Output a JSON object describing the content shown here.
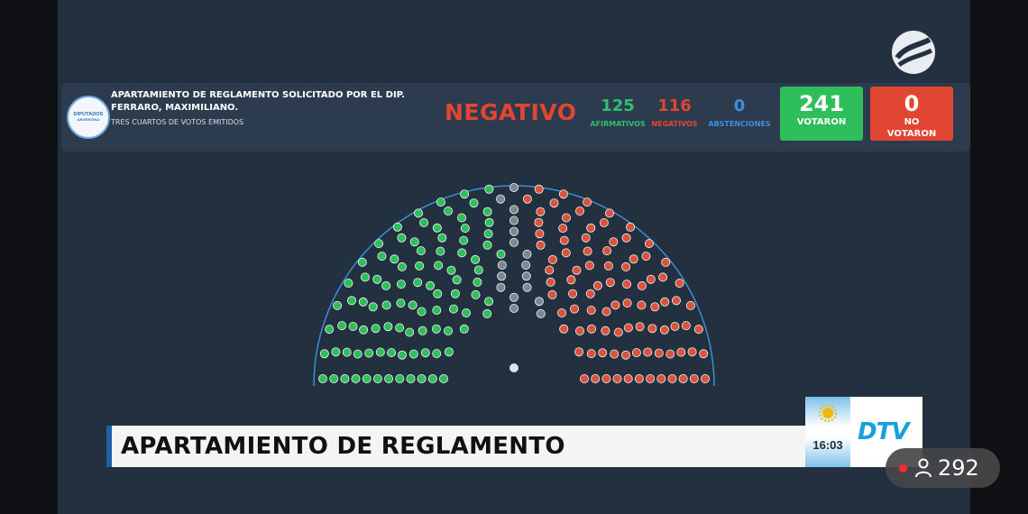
{
  "broadcast": {
    "channel_logo": "DTV",
    "clock": "16:03",
    "headline": "APARTAMIENTO DE REGLAMENTO",
    "viewers": "292"
  },
  "vote": {
    "seal_text": [
      "DIPUTADOS",
      "ARGENTINA"
    ],
    "motion_title": "APARTAMIENTO DE REGLAMENTO SOLICITADO POR EL DIP. FERRARO, MAXIMILIANO.",
    "majority_note": "TRES CUARTOS DE VOTOS EMITIDOS",
    "result": "NEGATIVO",
    "afirmativos": {
      "value": "125",
      "label": "AFIRMATIVOS"
    },
    "negativos": {
      "value": "116",
      "label": "NEGATIVOS"
    },
    "abstenciones": {
      "value": "0",
      "label": "ABSTENCIONES"
    },
    "votaron": {
      "value": "241",
      "label": "VOTARON"
    },
    "no_votaron": {
      "value": "0",
      "label": "NO VOTARON"
    }
  },
  "hemicycle": {
    "rows": [
      {
        "afirm": 12,
        "absent": 1,
        "neg": 12
      },
      {
        "afirm": 10,
        "absent": 1,
        "neg": 11
      },
      {
        "afirm": 10,
        "absent": 1,
        "neg": 10
      },
      {
        "afirm": 10,
        "absent": 1,
        "neg": 10
      },
      {
        "afirm": 9,
        "absent": 1,
        "neg": 9
      },
      {
        "afirm": 8,
        "absent": 1,
        "neg": 8
      },
      {
        "afirm": 8,
        "absent": 1,
        "neg": 7
      },
      {
        "afirm": 7,
        "absent": 2,
        "neg": 7
      },
      {
        "afirm": 6,
        "absent": 2,
        "neg": 6
      },
      {
        "afirm": 5,
        "absent": 2,
        "neg": 5
      },
      {
        "afirm": 5,
        "absent": 2,
        "neg": 4
      },
      {
        "afirm": 4,
        "absent": 2,
        "neg": 3
      }
    ],
    "colors": {
      "afirm": "#2fbf5a",
      "neg": "#d9533d",
      "absent": "#7d8792",
      "president": "#dbe2ea"
    }
  }
}
